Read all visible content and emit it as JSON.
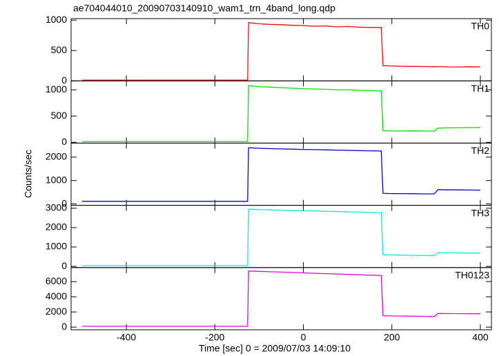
{
  "title": "ae704044010_20090703140910_wam1_trn_4band_long.qdp",
  "x_label": "Time [sec] 0 = 2009/07/03 14:09:10",
  "y_label": "Counts/sec",
  "chart_data": [
    {
      "type": "line",
      "xlim": [
        -525,
        425
      ],
      "xticks": [
        -400,
        -200,
        0,
        200,
        400
      ],
      "ylim": [
        0,
        1025
      ],
      "yticks": [
        0,
        500,
        1000
      ],
      "x": [
        -500,
        -400,
        -300,
        -200,
        -126,
        -124,
        -100,
        -75,
        -50,
        -25,
        0,
        25,
        50,
        75,
        100,
        125,
        150,
        176,
        180,
        200,
        225,
        250,
        275,
        296,
        304,
        325,
        350,
        375,
        400
      ],
      "series": [
        {
          "name": "TH0",
          "color": "#ff0000",
          "values": [
            12,
            12,
            12,
            12,
            12,
            960,
            940,
            930,
            925,
            915,
            910,
            900,
            905,
            890,
            895,
            885,
            880,
            880,
            250,
            245,
            240,
            238,
            235,
            232,
            235,
            230,
            228,
            232,
            230
          ]
        }
      ]
    },
    {
      "type": "line",
      "xlim": [
        -525,
        425
      ],
      "xticks": [
        -400,
        -200,
        0,
        200,
        400
      ],
      "ylim": [
        -15,
        1170
      ],
      "yticks": [
        0,
        500,
        1000
      ],
      "x": [
        -500,
        -400,
        -300,
        -200,
        -126,
        -124,
        -100,
        -75,
        -50,
        -25,
        0,
        25,
        50,
        75,
        100,
        125,
        150,
        176,
        180,
        200,
        225,
        250,
        275,
        296,
        304,
        325,
        350,
        375,
        400
      ],
      "series": [
        {
          "name": "TH1",
          "color": "#00e000",
          "values": [
            15,
            15,
            15,
            15,
            15,
            1080,
            1060,
            1050,
            1040,
            1030,
            1020,
            1015,
            1010,
            1000,
            1000,
            990,
            985,
            980,
            220,
            215,
            215,
            218,
            215,
            212,
            270,
            275,
            278,
            280,
            282
          ]
        }
      ]
    },
    {
      "type": "line",
      "xlim": [
        -525,
        425
      ],
      "xticks": [
        -400,
        -200,
        0,
        200,
        400
      ],
      "ylim": [
        -60,
        2600
      ],
      "yticks": [
        0,
        1000,
        2000
      ],
      "x": [
        -500,
        -400,
        -300,
        -200,
        -126,
        -124,
        -100,
        -75,
        -50,
        -25,
        0,
        25,
        50,
        75,
        100,
        125,
        150,
        176,
        180,
        200,
        225,
        250,
        275,
        296,
        304,
        325,
        350,
        375,
        400
      ],
      "series": [
        {
          "name": "TH2",
          "color": "#0000d0",
          "values": [
            110,
            110,
            110,
            110,
            110,
            2400,
            2380,
            2360,
            2350,
            2340,
            2330,
            2320,
            2310,
            2300,
            2290,
            2280,
            2270,
            2260,
            450,
            440,
            440,
            435,
            430,
            430,
            610,
            600,
            600,
            595,
            590
          ]
        }
      ]
    },
    {
      "type": "line",
      "xlim": [
        -525,
        425
      ],
      "xticks": [
        -400,
        -200,
        0,
        200,
        400
      ],
      "ylim": [
        -60,
        3150
      ],
      "yticks": [
        0,
        1000,
        2000,
        3000
      ],
      "x": [
        -500,
        -400,
        -300,
        -200,
        -126,
        -124,
        -100,
        -75,
        -50,
        -25,
        0,
        25,
        50,
        75,
        100,
        125,
        150,
        176,
        180,
        200,
        225,
        250,
        275,
        296,
        304,
        325,
        350,
        375,
        400
      ],
      "series": [
        {
          "name": "TH3",
          "color": "#00e8e8",
          "values": [
            40,
            40,
            40,
            40,
            40,
            2950,
            2930,
            2910,
            2900,
            2880,
            2870,
            2860,
            2840,
            2830,
            2810,
            2800,
            2780,
            2760,
            600,
            590,
            580,
            570,
            560,
            555,
            700,
            700,
            695,
            690,
            685
          ]
        }
      ]
    },
    {
      "type": "line",
      "xlim": [
        -525,
        425
      ],
      "xticks": [
        -400,
        -200,
        0,
        200,
        400
      ],
      "ylim": [
        -350,
        7850
      ],
      "yticks": [
        0,
        2000,
        4000,
        6000
      ],
      "x": [
        -500,
        -400,
        -300,
        -200,
        -126,
        -124,
        -100,
        -75,
        -50,
        -25,
        0,
        25,
        50,
        75,
        100,
        125,
        150,
        176,
        180,
        200,
        225,
        250,
        275,
        296,
        304,
        325,
        350,
        375,
        400
      ],
      "series": [
        {
          "name": "TH0123",
          "color": "#e000e0",
          "values": [
            110,
            110,
            110,
            110,
            110,
            7400,
            7350,
            7300,
            7250,
            7200,
            7150,
            7100,
            7050,
            7000,
            6950,
            6900,
            6850,
            6800,
            1500,
            1480,
            1460,
            1440,
            1420,
            1400,
            1800,
            1790,
            1780,
            1770,
            1760
          ]
        }
      ]
    }
  ]
}
